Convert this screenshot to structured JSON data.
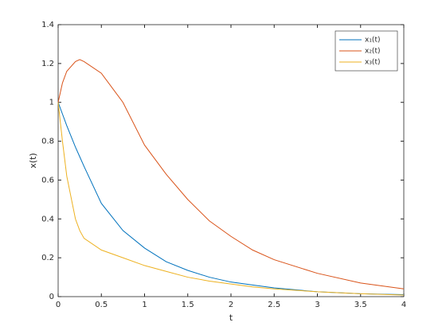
{
  "chart_data": {
    "type": "line",
    "xlabel": "t",
    "ylabel": "x(t)",
    "x": [
      0,
      0.05,
      0.1,
      0.2,
      0.25,
      0.3,
      0.5,
      0.75,
      1,
      1.25,
      1.5,
      1.75,
      2,
      2.25,
      2.5,
      3,
      3.5,
      4
    ],
    "series": [
      {
        "name": "x₁(t)",
        "color": "#0072bd",
        "values": [
          1,
          0.94,
          0.88,
          0.77,
          0.72,
          0.67,
          0.48,
          0.34,
          0.25,
          0.18,
          0.135,
          0.1,
          0.075,
          0.06,
          0.045,
          0.025,
          0.015,
          0.01
        ]
      },
      {
        "name": "x₂(t)",
        "color": "#d95319",
        "values": [
          1,
          1.1,
          1.16,
          1.21,
          1.22,
          1.21,
          1.15,
          1.0,
          0.78,
          0.63,
          0.5,
          0.39,
          0.31,
          0.24,
          0.19,
          0.12,
          0.07,
          0.04
        ]
      },
      {
        "name": "x₃(t)",
        "color": "#edb120",
        "values": [
          1,
          0.8,
          0.62,
          0.4,
          0.34,
          0.3,
          0.24,
          0.2,
          0.16,
          0.13,
          0.1,
          0.08,
          0.065,
          0.05,
          0.04,
          0.025,
          0.015,
          0.008
        ]
      }
    ],
    "xlim": [
      0,
      4
    ],
    "xticks": [
      0,
      0.5,
      1,
      1.5,
      2,
      2.5,
      3,
      3.5,
      4
    ],
    "ylim": [
      0,
      1.4
    ],
    "yticks": [
      0,
      0.2,
      0.4,
      0.6,
      0.8,
      1,
      1.2,
      1.4
    ],
    "grid": false,
    "legend": "northeast"
  }
}
